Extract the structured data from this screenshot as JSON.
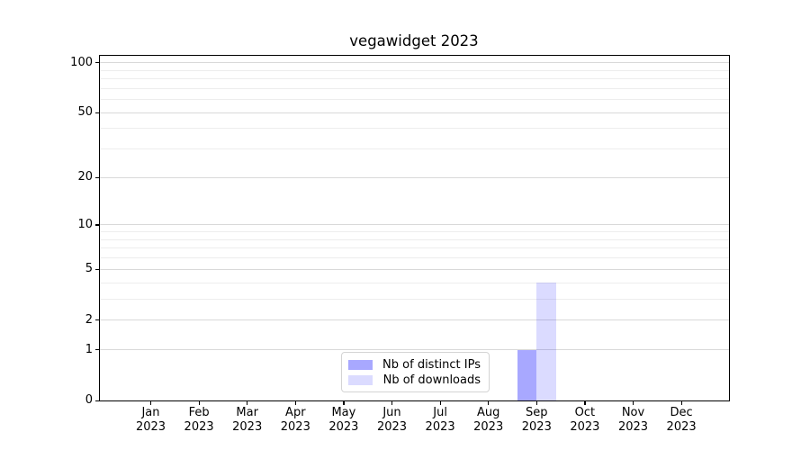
{
  "figure": {
    "background": "#ffffff"
  },
  "chart_data": {
    "type": "bar",
    "title": "vegawidget 2023",
    "categories": [
      "Jan 2023",
      "Feb 2023",
      "Mar 2023",
      "Apr 2023",
      "May 2023",
      "Jun 2023",
      "Jul 2023",
      "Aug 2023",
      "Sep 2023",
      "Oct 2023",
      "Nov 2023",
      "Dec 2023"
    ],
    "series": [
      {
        "name": "Nb of distinct IPs",
        "values": [
          0,
          0,
          0,
          0,
          0,
          0,
          0,
          0,
          1,
          0,
          0,
          0
        ],
        "color": "rgba(0,0,255,0.34)",
        "color_hex_on_white": "#aaaaff"
      },
      {
        "name": "Nb of downloads",
        "values": [
          0,
          0,
          0,
          0,
          0,
          0,
          0,
          0,
          4,
          0,
          0,
          0
        ],
        "color": "rgba(0,0,255,0.14)",
        "color_hex_on_white": "#dcdcff"
      }
    ],
    "xlabel": "",
    "ylabel": "",
    "yscale": "log1p",
    "ylim": [
      0,
      110
    ],
    "y_major_ticks": [
      0,
      1,
      2,
      5,
      10,
      20,
      50,
      100
    ],
    "y_minor_ticks": [
      3,
      4,
      6,
      7,
      8,
      9,
      30,
      40,
      60,
      70,
      80,
      90
    ],
    "grid": "horizontal major and minor gridlines",
    "legend_position": "inside bottom-center"
  },
  "legend": {
    "items": [
      {
        "label": "Nb of distinct IPs",
        "color": "rgba(0,0,255,0.34)"
      },
      {
        "label": "Nb of downloads",
        "color": "rgba(0,0,255,0.14)"
      }
    ]
  },
  "colors": {
    "grid_major": "#d9d9d9",
    "grid_minor": "#ededed",
    "spine": "#000000",
    "tick_label": "#000000",
    "legend_border": "#d4d4d4"
  }
}
